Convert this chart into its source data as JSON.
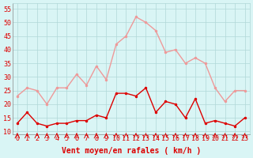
{
  "hours": [
    0,
    1,
    2,
    3,
    4,
    5,
    6,
    7,
    8,
    9,
    10,
    11,
    12,
    13,
    14,
    15,
    16,
    17,
    18,
    19,
    20,
    21,
    22,
    23
  ],
  "avg_wind": [
    13,
    17,
    13,
    12,
    13,
    13,
    14,
    14,
    16,
    15,
    24,
    24,
    23,
    26,
    17,
    21,
    20,
    15,
    22,
    13,
    14,
    13,
    12,
    15
  ],
  "gust_wind": [
    23,
    26,
    25,
    20,
    26,
    26,
    31,
    27,
    34,
    29,
    42,
    45,
    52,
    50,
    47,
    39,
    40,
    35,
    37,
    35,
    26,
    21,
    25,
    25
  ],
  "xlabel": "Vent moyen/en rafales ( km/h )",
  "yticks": [
    10,
    15,
    20,
    25,
    30,
    35,
    40,
    45,
    50,
    55
  ],
  "ymin": 9,
  "ymax": 57,
  "bg_color": "#d9f5f5",
  "grid_color": "#b0d8d8",
  "line_color_avg": "#dd0000",
  "line_color_gust": "#ee9999",
  "marker_size": 2.5,
  "line_width": 1.0,
  "tick_label_fontsize": 6,
  "xlabel_fontsize": 7
}
